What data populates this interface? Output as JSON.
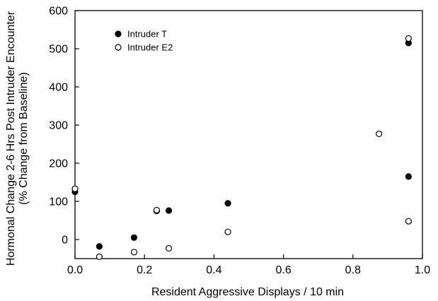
{
  "chart_data": {
    "type": "scatter",
    "title": "",
    "xlabel": "Resident Aggressive Displays / 10 min",
    "ylabel": "Hormonal Change 2-6 Hrs Post Intruder Encounter",
    "ylabel2": "(% Change from Baseline)",
    "xlim": [
      0.0,
      1.0
    ],
    "ylim": [
      -50,
      600
    ],
    "xticks": [
      0.0,
      0.2,
      0.4,
      0.6,
      0.8,
      1.0
    ],
    "xtick_labels": [
      "0.0",
      "0.2",
      "0.4",
      "0.6",
      "0.8",
      "1.0"
    ],
    "yticks": [
      0,
      100,
      200,
      300,
      400,
      500,
      600
    ],
    "ytick_labels": [
      "0",
      "100",
      "200",
      "300",
      "400",
      "500",
      "600"
    ],
    "grid": false,
    "legend_position": "top-left",
    "series": [
      {
        "name": "Intruder T",
        "marker": "filled-circle",
        "color": "#000000",
        "points": [
          [
            0.0,
            125
          ],
          [
            0.07,
            -18
          ],
          [
            0.17,
            5
          ],
          [
            0.235,
            75
          ],
          [
            0.27,
            76
          ],
          [
            0.44,
            95
          ],
          [
            0.96,
            515
          ],
          [
            0.96,
            165
          ]
        ]
      },
      {
        "name": "Intruder E2",
        "marker": "open-circle",
        "color": "#000000",
        "points": [
          [
            0.0,
            133
          ],
          [
            0.07,
            -45
          ],
          [
            0.17,
            -33
          ],
          [
            0.235,
            77
          ],
          [
            0.27,
            -23
          ],
          [
            0.44,
            20
          ],
          [
            0.875,
            277
          ],
          [
            0.96,
            527
          ],
          [
            0.96,
            48
          ]
        ]
      }
    ]
  }
}
